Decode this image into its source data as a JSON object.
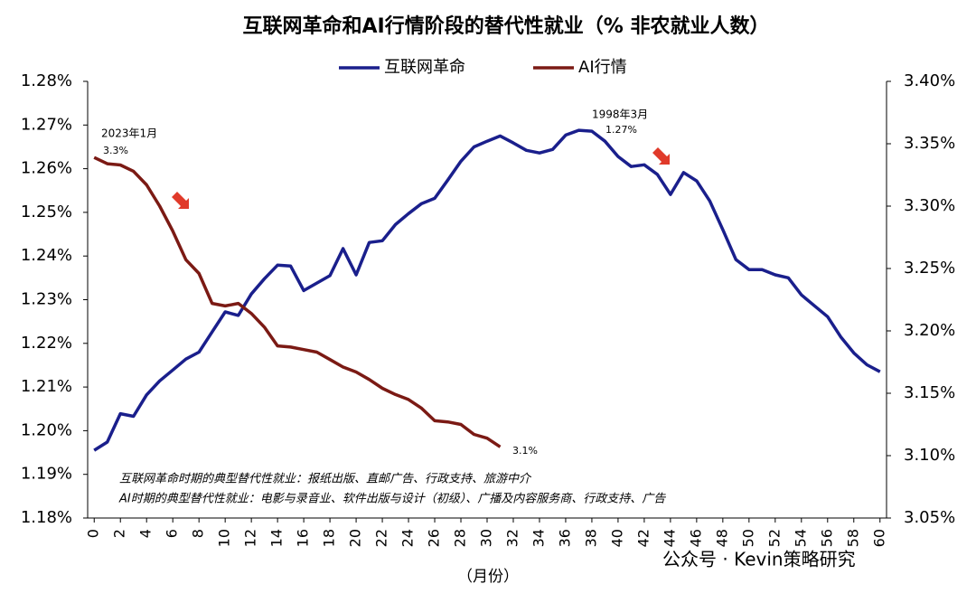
{
  "chart_data": {
    "type": "line",
    "title": "互联网革命和AI行情阶段的替代性就业（% 非农就业人数）",
    "x_label": "（月份）",
    "x": [
      0,
      1,
      2,
      3,
      4,
      5,
      6,
      7,
      8,
      9,
      10,
      11,
      12,
      13,
      14,
      15,
      16,
      17,
      18,
      19,
      20,
      21,
      22,
      23,
      24,
      25,
      26,
      27,
      28,
      29,
      30,
      31,
      32,
      33,
      34,
      35,
      36,
      37,
      38,
      39,
      40,
      41,
      42,
      43,
      44,
      45,
      46,
      47,
      48,
      49,
      50,
      51,
      52,
      53,
      54,
      55,
      56,
      57,
      58,
      59,
      60
    ],
    "xlim": [
      -0.5,
      60.5
    ],
    "xticks": [
      0,
      2,
      4,
      6,
      8,
      10,
      12,
      14,
      16,
      18,
      20,
      22,
      24,
      26,
      28,
      30,
      32,
      34,
      36,
      38,
      40,
      42,
      44,
      46,
      48,
      50,
      52,
      54,
      56,
      58,
      60
    ],
    "ylim": [
      1.18,
      1.28
    ],
    "yticks": [
      {
        "value": 1.18,
        "label": "1.18%"
      },
      {
        "value": 1.19,
        "label": "1.19%"
      },
      {
        "value": 1.2,
        "label": "1.20%"
      },
      {
        "value": 1.21,
        "label": "1.21%"
      },
      {
        "value": 1.22,
        "label": "1.22%"
      },
      {
        "value": 1.23,
        "label": "1.23%"
      },
      {
        "value": 1.24,
        "label": "1.24%"
      },
      {
        "value": 1.25,
        "label": "1.25%"
      },
      {
        "value": 1.26,
        "label": "1.26%"
      },
      {
        "value": 1.27,
        "label": "1.27%"
      },
      {
        "value": 1.28,
        "label": "1.28%"
      }
    ],
    "y2lim": [
      3.05,
      3.4
    ],
    "y2ticks": [
      {
        "value": 3.05,
        "label": "3.05%"
      },
      {
        "value": 3.1,
        "label": "3.10%"
      },
      {
        "value": 3.15,
        "label": "3.15%"
      },
      {
        "value": 3.2,
        "label": "3.20%"
      },
      {
        "value": 3.25,
        "label": "3.25%"
      },
      {
        "value": 3.3,
        "label": "3.30%"
      },
      {
        "value": 3.35,
        "label": "3.35%"
      },
      {
        "value": 3.4,
        "label": "3.40%"
      }
    ],
    "grid": false,
    "legend": "top",
    "series": [
      {
        "name": "互联网革命",
        "color": "#1a1f8c",
        "axis": "y",
        "values": [
          1.1955,
          1.1974,
          1.2039,
          1.2033,
          1.2082,
          1.2114,
          1.2139,
          1.2164,
          1.218,
          1.2226,
          1.2272,
          1.2264,
          1.2313,
          1.2348,
          1.2379,
          1.2377,
          1.2321,
          1.2338,
          1.2355,
          1.2417,
          1.2357,
          1.2431,
          1.2435,
          1.2472,
          1.2497,
          1.252,
          1.2532,
          1.2574,
          1.2617,
          1.265,
          1.2663,
          1.2675,
          1.2659,
          1.2642,
          1.2636,
          1.2644,
          1.2677,
          1.2688,
          1.2686,
          1.2663,
          1.2628,
          1.2605,
          1.2609,
          1.2587,
          1.2541,
          1.2591,
          1.2572,
          1.2526,
          1.246,
          1.2392,
          1.2369,
          1.2369,
          1.2357,
          1.235,
          1.2311,
          1.2286,
          1.2261,
          1.2215,
          1.2178,
          1.2151,
          1.2135
        ]
      },
      {
        "name": "AI行情",
        "color": "#7b1a14",
        "axis": "y2",
        "values": [
          3.339,
          3.334,
          3.333,
          3.328,
          3.317,
          3.3,
          3.28,
          3.257,
          3.246,
          3.222,
          3.22,
          3.222,
          3.214,
          3.203,
          3.188,
          3.187,
          3.185,
          3.183,
          3.177,
          3.171,
          3.167,
          3.161,
          3.154,
          3.149,
          3.145,
          3.138,
          3.128,
          3.127,
          3.125,
          3.117,
          3.114,
          3.107,
          null,
          null,
          null,
          null,
          null,
          null,
          null,
          null,
          null,
          null,
          null,
          null,
          null,
          null,
          null,
          null,
          null,
          null,
          null,
          null,
          null,
          null,
          null,
          null,
          null,
          null,
          null,
          null,
          null
        ]
      }
    ],
    "annotations": [
      "2023年1月",
      "3.3%",
      "3.1%",
      "1998年3月",
      "1.27%",
      "互联网革命时期的典型替代性就业：报纸出版、直邮广告、行政支持、旅游中介",
      "AI时期的典型替代性就业：电影与录音业、软件出版与设计（初级）、广播及内容服务商、行政支持、广告",
      "公众号 · Kevin策略研究"
    ]
  }
}
